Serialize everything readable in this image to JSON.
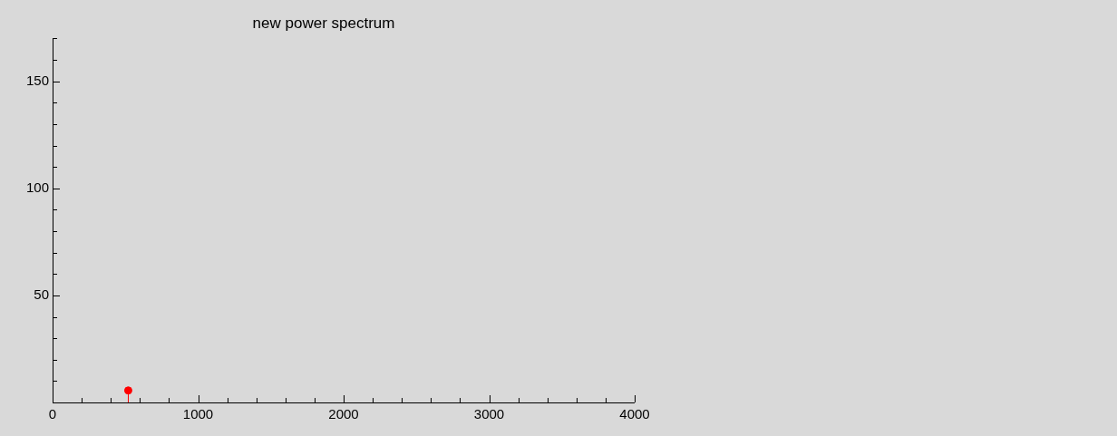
{
  "chart_data": {
    "type": "lollipop",
    "title": "new power spectrum",
    "x": [
      520
    ],
    "series": [
      {
        "color": "#ff0000",
        "values": [
          5.6
        ]
      }
    ],
    "marker": "circle",
    "xlim": [
      0,
      4000
    ],
    "xticks": [
      0,
      {
        "value": 200,
        "label": null
      },
      {
        "value": 400,
        "label": null
      },
      {
        "value": 600,
        "label": null
      },
      {
        "value": 800,
        "label": null
      },
      1000,
      {
        "value": 1200,
        "label": null
      },
      {
        "value": 1400,
        "label": null
      },
      {
        "value": 1600,
        "label": null
      },
      {
        "value": 1800,
        "label": null
      },
      2000,
      {
        "value": 2200,
        "label": null
      },
      {
        "value": 2400,
        "label": null
      },
      {
        "value": 2600,
        "label": null
      },
      {
        "value": 2800,
        "label": null
      },
      3000,
      {
        "value": 3200,
        "label": null
      },
      {
        "value": 3400,
        "label": null
      },
      {
        "value": 3600,
        "label": null
      },
      {
        "value": 3800,
        "label": null
      },
      4000
    ],
    "ylim": [
      0,
      170
    ],
    "yticks": [
      {
        "value": 10,
        "label": null
      },
      {
        "value": 20,
        "label": null
      },
      {
        "value": 30,
        "label": null
      },
      {
        "value": 40,
        "label": null
      },
      50,
      {
        "value": 60,
        "label": null
      },
      {
        "value": 70,
        "label": null
      },
      {
        "value": 80,
        "label": null
      },
      {
        "value": 90,
        "label": null
      },
      100,
      {
        "value": 110,
        "label": null
      },
      {
        "value": 120,
        "label": null
      },
      {
        "value": 130,
        "label": null
      },
      {
        "value": 140,
        "label": null
      },
      150,
      {
        "value": 160,
        "label": null
      },
      {
        "value": 170,
        "label": null
      }
    ],
    "grid": false,
    "legend": false
  }
}
